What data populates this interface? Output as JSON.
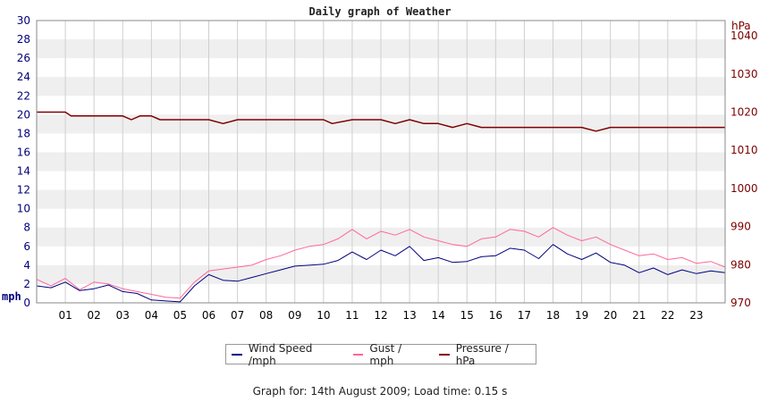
{
  "chart_data": {
    "type": "line",
    "title": "Daily graph of Weather",
    "left_axis": {
      "unit": "mph",
      "ylim": [
        0,
        30
      ],
      "ticks": [
        0,
        2,
        4,
        6,
        8,
        10,
        12,
        14,
        16,
        18,
        20,
        22,
        24,
        26,
        28,
        30
      ]
    },
    "right_axis": {
      "unit": "hPa",
      "ylim": [
        970,
        1044
      ],
      "ticks": [
        970,
        980,
        990,
        1000,
        1010,
        1020,
        1030,
        1040
      ]
    },
    "x_ticks": [
      "01",
      "02",
      "03",
      "04",
      "05",
      "06",
      "07",
      "08",
      "09",
      "10",
      "11",
      "12",
      "13",
      "14",
      "15",
      "16",
      "17",
      "18",
      "19",
      "20",
      "21",
      "22",
      "23"
    ],
    "grid": true,
    "legend_position": "bottom",
    "series": [
      {
        "name": "Wind Speed /mph",
        "axis": "left",
        "color": "#000080",
        "x": [
          0,
          0.5,
          1,
          1.5,
          2,
          2.5,
          3,
          3.5,
          4,
          4.5,
          5,
          5.5,
          6,
          6.5,
          7,
          7.5,
          8,
          8.5,
          9,
          9.5,
          10,
          10.5,
          11,
          11.5,
          12,
          12.5,
          13,
          13.5,
          14,
          14.5,
          15,
          15.5,
          16,
          16.5,
          17,
          17.5,
          18,
          18.5,
          19,
          19.5,
          20,
          20.5,
          21,
          21.5,
          22,
          22.5,
          23,
          23.5,
          24
        ],
        "values": [
          1.8,
          1.6,
          2.2,
          1.3,
          1.5,
          1.9,
          1.2,
          1.0,
          0.3,
          0.2,
          0.1,
          1.8,
          3.0,
          2.4,
          2.3,
          2.7,
          3.1,
          3.5,
          3.9,
          4.0,
          4.1,
          4.5,
          5.4,
          4.6,
          5.6,
          5.0,
          6.0,
          4.5,
          4.8,
          4.3,
          4.4,
          4.9,
          5.0,
          5.8,
          5.6,
          4.7,
          6.2,
          5.2,
          4.6,
          5.3,
          4.3,
          4.0,
          3.2,
          3.7,
          3.0,
          3.5,
          3.1,
          3.4,
          3.2
        ]
      },
      {
        "name": "Gust / mph",
        "axis": "left",
        "color": "#ff6699",
        "x": [
          0,
          0.5,
          1,
          1.5,
          2,
          2.5,
          3,
          3.5,
          4,
          4.5,
          5,
          5.5,
          6,
          6.5,
          7,
          7.5,
          8,
          8.5,
          9,
          9.5,
          10,
          10.5,
          11,
          11.5,
          12,
          12.5,
          13,
          13.5,
          14,
          14.5,
          15,
          15.5,
          16,
          16.5,
          17,
          17.5,
          18,
          18.5,
          19,
          19.5,
          20,
          20.5,
          21,
          21.5,
          22,
          22.5,
          23,
          23.5,
          24
        ],
        "values": [
          2.5,
          1.8,
          2.6,
          1.4,
          2.2,
          2.0,
          1.5,
          1.2,
          0.9,
          0.6,
          0.5,
          2.2,
          3.4,
          3.6,
          3.8,
          4.0,
          4.6,
          5.0,
          5.6,
          6.0,
          6.2,
          6.8,
          7.8,
          6.8,
          7.6,
          7.2,
          7.8,
          7.0,
          6.6,
          6.2,
          6.0,
          6.8,
          7.0,
          7.8,
          7.6,
          7.0,
          8.0,
          7.2,
          6.6,
          7.0,
          6.2,
          5.6,
          5.0,
          5.2,
          4.6,
          4.8,
          4.2,
          4.4,
          3.8
        ]
      },
      {
        "name": "Pressure / hPa",
        "axis": "right",
        "color": "#800000",
        "x": [
          0,
          1,
          1.2,
          2,
          3,
          3.3,
          3.6,
          4,
          4.3,
          5,
          6,
          6.5,
          7,
          8,
          9,
          10,
          10.3,
          11,
          12,
          12.5,
          13,
          13.5,
          14,
          14.5,
          15,
          15.5,
          16,
          17,
          18,
          18.5,
          19,
          19.5,
          20,
          21,
          22,
          23,
          24
        ],
        "values": [
          1020,
          1020,
          1019,
          1019,
          1019,
          1018,
          1019,
          1019,
          1018,
          1018,
          1018,
          1017,
          1018,
          1018,
          1018,
          1018,
          1017,
          1018,
          1018,
          1017,
          1018,
          1017,
          1017,
          1016,
          1017,
          1016,
          1016,
          1016,
          1016,
          1016,
          1016,
          1015,
          1016,
          1016,
          1016,
          1016,
          1016
        ]
      }
    ]
  },
  "legend": {
    "items": [
      {
        "label": "Wind Speed /mph",
        "color": "#000080"
      },
      {
        "label": "Gust / mph",
        "color": "#ff6699"
      },
      {
        "label": "Pressure / hPa",
        "color": "#800000"
      }
    ]
  },
  "footer": {
    "text": "Graph for: 14th August 2009; Load time: 0.15 s"
  }
}
